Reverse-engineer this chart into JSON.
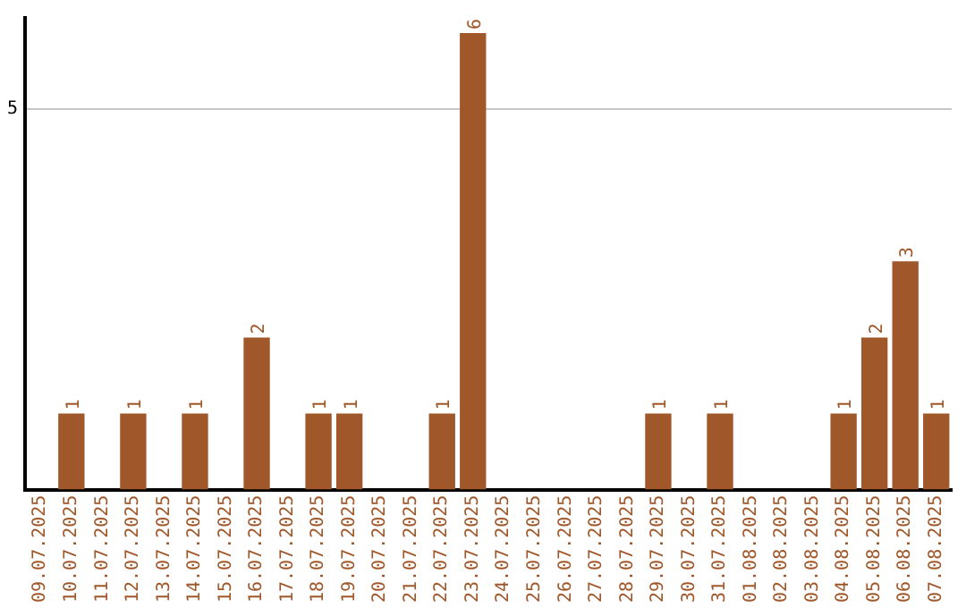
{
  "chart_data": {
    "type": "bar",
    "categories": [
      "09.07.2025",
      "10.07.2025",
      "11.07.2025",
      "12.07.2025",
      "13.07.2025",
      "14.07.2025",
      "15.07.2025",
      "16.07.2025",
      "17.07.2025",
      "18.07.2025",
      "19.07.2025",
      "20.07.2025",
      "21.07.2025",
      "22.07.2025",
      "23.07.2025",
      "24.07.2025",
      "25.07.2025",
      "26.07.2025",
      "27.07.2025",
      "28.07.2025",
      "29.07.2025",
      "30.07.2025",
      "31.07.2025",
      "01.08.2025",
      "02.08.2025",
      "03.08.2025",
      "04.08.2025",
      "05.08.2025",
      "06.08.2025",
      "07.08.2025"
    ],
    "values": [
      0,
      1,
      0,
      1,
      0,
      1,
      0,
      2,
      0,
      1,
      1,
      0,
      0,
      1,
      6,
      0,
      0,
      0,
      0,
      0,
      1,
      0,
      1,
      0,
      0,
      0,
      1,
      2,
      3,
      1
    ],
    "color": "#a0582a",
    "value_labels": [
      null,
      "1",
      null,
      "1",
      null,
      "1",
      null,
      "2",
      null,
      "1",
      "1",
      null,
      null,
      "1",
      "6",
      null,
      null,
      null,
      null,
      null,
      "1",
      null,
      "1",
      null,
      null,
      null,
      "1",
      "2",
      "3",
      "1"
    ],
    "ylim": [
      0,
      6.2
    ],
    "yticks": [
      5
    ],
    "grid": "y",
    "legend": false
  }
}
